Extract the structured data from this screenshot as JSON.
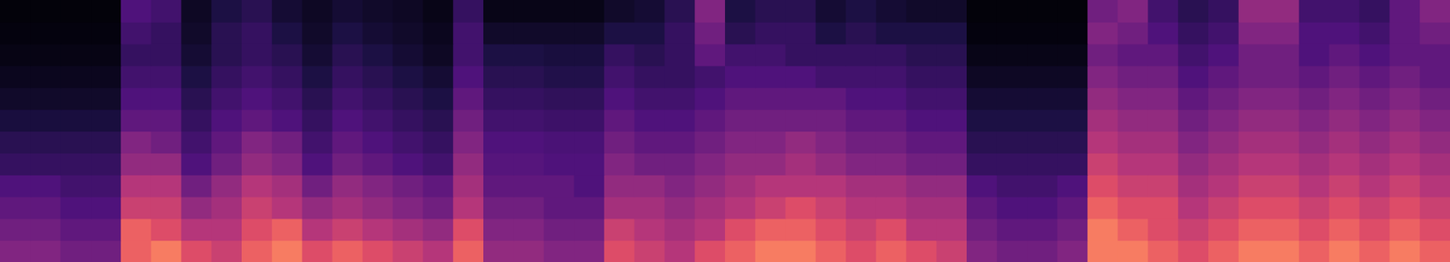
{
  "chart_data": {
    "type": "heatmap",
    "xlim": [
      0,
      48
    ],
    "ylim": [
      0,
      12
    ],
    "zlim": [
      0,
      1
    ],
    "tick_labels": false,
    "boundaries": [
      4,
      16,
      20,
      32,
      36
    ],
    "cells": [
      [
        0.55,
        0.55,
        0.5,
        0.5,
        0.85,
        0.9,
        0.8,
        0.75,
        0.85,
        0.9,
        0.8,
        0.85,
        0.8,
        0.75,
        0.7,
        0.85,
        0.6,
        0.6,
        0.55,
        0.55,
        0.8,
        0.75,
        0.7,
        0.8,
        0.85,
        0.9,
        0.9,
        0.85,
        0.8,
        0.85,
        0.8,
        0.75,
        0.55,
        0.5,
        0.5,
        0.55,
        0.9,
        0.9,
        0.85,
        0.8,
        0.85,
        0.9,
        0.9,
        0.85,
        0.9,
        0.85,
        0.9,
        0.85
      ],
      [
        0.5,
        0.5,
        0.45,
        0.45,
        0.85,
        0.8,
        0.7,
        0.7,
        0.8,
        0.85,
        0.7,
        0.75,
        0.7,
        0.65,
        0.6,
        0.8,
        0.55,
        0.55,
        0.5,
        0.5,
        0.75,
        0.7,
        0.65,
        0.7,
        0.8,
        0.85,
        0.85,
        0.8,
        0.75,
        0.8,
        0.7,
        0.7,
        0.5,
        0.45,
        0.45,
        0.5,
        0.9,
        0.85,
        0.8,
        0.75,
        0.8,
        0.85,
        0.85,
        0.8,
        0.85,
        0.8,
        0.85,
        0.8
      ],
      [
        0.45,
        0.45,
        0.4,
        0.4,
        0.75,
        0.75,
        0.6,
        0.65,
        0.75,
        0.7,
        0.6,
        0.65,
        0.6,
        0.55,
        0.5,
        0.7,
        0.5,
        0.5,
        0.45,
        0.45,
        0.65,
        0.65,
        0.6,
        0.65,
        0.7,
        0.75,
        0.8,
        0.75,
        0.7,
        0.7,
        0.65,
        0.65,
        0.45,
        0.4,
        0.4,
        0.45,
        0.85,
        0.8,
        0.8,
        0.7,
        0.75,
        0.8,
        0.8,
        0.75,
        0.8,
        0.75,
        0.8,
        0.75
      ],
      [
        0.4,
        0.4,
        0.35,
        0.35,
        0.7,
        0.7,
        0.5,
        0.6,
        0.7,
        0.65,
        0.5,
        0.6,
        0.55,
        0.5,
        0.45,
        0.65,
        0.45,
        0.45,
        0.45,
        0.4,
        0.6,
        0.6,
        0.55,
        0.6,
        0.65,
        0.7,
        0.7,
        0.7,
        0.65,
        0.65,
        0.6,
        0.6,
        0.4,
        0.35,
        0.35,
        0.4,
        0.8,
        0.75,
        0.75,
        0.65,
        0.7,
        0.75,
        0.75,
        0.7,
        0.75,
        0.7,
        0.75,
        0.7
      ],
      [
        0.3,
        0.3,
        0.3,
        0.3,
        0.6,
        0.6,
        0.4,
        0.5,
        0.6,
        0.55,
        0.4,
        0.5,
        0.45,
        0.4,
        0.35,
        0.6,
        0.42,
        0.42,
        0.4,
        0.4,
        0.55,
        0.5,
        0.5,
        0.55,
        0.6,
        0.6,
        0.65,
        0.6,
        0.55,
        0.55,
        0.5,
        0.5,
        0.3,
        0.3,
        0.3,
        0.3,
        0.75,
        0.7,
        0.7,
        0.6,
        0.65,
        0.7,
        0.7,
        0.65,
        0.7,
        0.65,
        0.7,
        0.65
      ],
      [
        0.25,
        0.25,
        0.25,
        0.25,
        0.55,
        0.5,
        0.35,
        0.45,
        0.55,
        0.5,
        0.35,
        0.45,
        0.4,
        0.35,
        0.3,
        0.55,
        0.4,
        0.4,
        0.38,
        0.38,
        0.5,
        0.45,
        0.45,
        0.5,
        0.55,
        0.55,
        0.6,
        0.55,
        0.5,
        0.5,
        0.45,
        0.45,
        0.25,
        0.25,
        0.25,
        0.25,
        0.7,
        0.65,
        0.65,
        0.55,
        0.6,
        0.65,
        0.65,
        0.6,
        0.65,
        0.6,
        0.65,
        0.6
      ],
      [
        0.18,
        0.18,
        0.18,
        0.18,
        0.45,
        0.45,
        0.3,
        0.4,
        0.45,
        0.4,
        0.3,
        0.4,
        0.35,
        0.3,
        0.25,
        0.5,
        0.35,
        0.35,
        0.33,
        0.33,
        0.45,
        0.4,
        0.4,
        0.45,
        0.5,
        0.5,
        0.5,
        0.5,
        0.45,
        0.45,
        0.4,
        0.4,
        0.2,
        0.2,
        0.2,
        0.2,
        0.65,
        0.6,
        0.6,
        0.5,
        0.55,
        0.6,
        0.6,
        0.55,
        0.6,
        0.55,
        0.6,
        0.55
      ],
      [
        0.12,
        0.12,
        0.12,
        0.12,
        0.4,
        0.4,
        0.25,
        0.35,
        0.4,
        0.35,
        0.25,
        0.35,
        0.3,
        0.25,
        0.2,
        0.45,
        0.3,
        0.3,
        0.28,
        0.28,
        0.4,
        0.35,
        0.35,
        0.4,
        0.45,
        0.45,
        0.45,
        0.45,
        0.4,
        0.4,
        0.35,
        0.35,
        0.15,
        0.15,
        0.15,
        0.15,
        0.6,
        0.55,
        0.55,
        0.45,
        0.5,
        0.55,
        0.55,
        0.5,
        0.55,
        0.5,
        0.55,
        0.5
      ],
      [
        0.08,
        0.08,
        0.08,
        0.08,
        0.35,
        0.35,
        0.2,
        0.3,
        0.35,
        0.3,
        0.2,
        0.3,
        0.25,
        0.2,
        0.15,
        0.4,
        0.25,
        0.25,
        0.22,
        0.22,
        0.35,
        0.3,
        0.3,
        0.35,
        0.4,
        0.4,
        0.4,
        0.35,
        0.35,
        0.35,
        0.3,
        0.3,
        0.1,
        0.1,
        0.1,
        0.1,
        0.55,
        0.5,
        0.5,
        0.4,
        0.45,
        0.5,
        0.5,
        0.45,
        0.5,
        0.45,
        0.5,
        0.45
      ],
      [
        0.05,
        0.05,
        0.05,
        0.05,
        0.3,
        0.3,
        0.15,
        0.25,
        0.3,
        0.25,
        0.15,
        0.25,
        0.2,
        0.15,
        0.1,
        0.35,
        0.2,
        0.2,
        0.18,
        0.18,
        0.3,
        0.25,
        0.3,
        0.45,
        0.35,
        0.35,
        0.3,
        0.3,
        0.3,
        0.3,
        0.25,
        0.25,
        0.06,
        0.06,
        0.06,
        0.06,
        0.5,
        0.45,
        0.45,
        0.35,
        0.4,
        0.5,
        0.5,
        0.4,
        0.45,
        0.4,
        0.45,
        0.45
      ],
      [
        0.03,
        0.03,
        0.03,
        0.03,
        0.35,
        0.3,
        0.12,
        0.25,
        0.3,
        0.2,
        0.12,
        0.2,
        0.15,
        0.12,
        0.08,
        0.35,
        0.12,
        0.12,
        0.12,
        0.12,
        0.2,
        0.2,
        0.3,
        0.5,
        0.25,
        0.3,
        0.3,
        0.2,
        0.25,
        0.2,
        0.2,
        0.2,
        0.03,
        0.03,
        0.03,
        0.03,
        0.55,
        0.5,
        0.4,
        0.3,
        0.35,
        0.55,
        0.55,
        0.4,
        0.4,
        0.35,
        0.45,
        0.5
      ],
      [
        0.02,
        0.02,
        0.02,
        0.02,
        0.4,
        0.35,
        0.1,
        0.2,
        0.25,
        0.15,
        0.1,
        0.15,
        0.12,
        0.1,
        0.06,
        0.3,
        0.06,
        0.06,
        0.06,
        0.06,
        0.12,
        0.15,
        0.25,
        0.55,
        0.2,
        0.25,
        0.25,
        0.15,
        0.2,
        0.15,
        0.12,
        0.12,
        0.02,
        0.02,
        0.02,
        0.02,
        0.5,
        0.55,
        0.35,
        0.25,
        0.3,
        0.6,
        0.6,
        0.35,
        0.35,
        0.3,
        0.45,
        0.55
      ]
    ]
  }
}
